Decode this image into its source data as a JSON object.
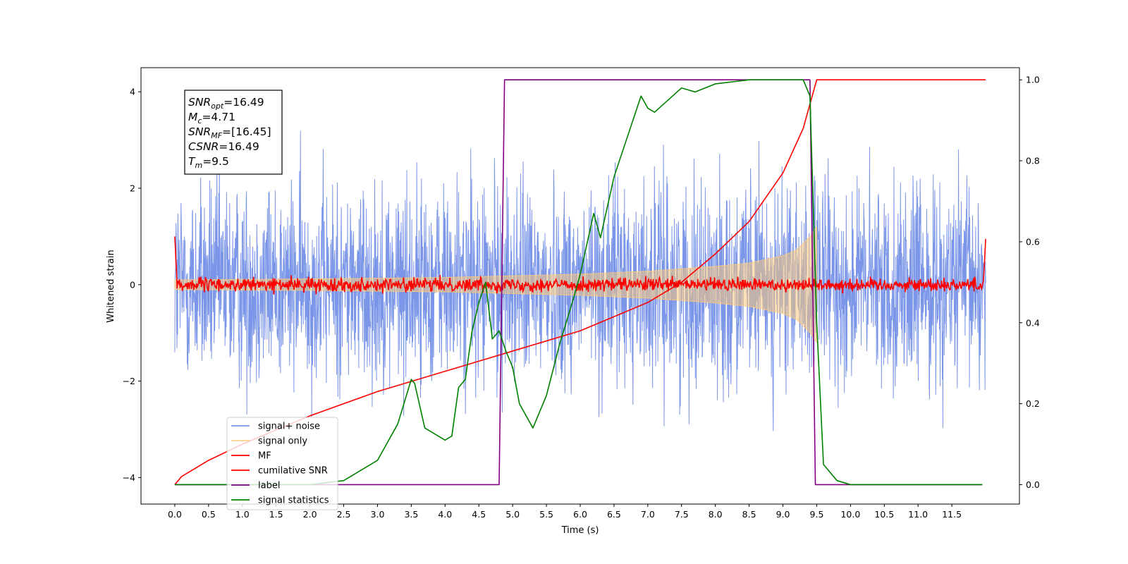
{
  "chart_data": {
    "type": "line",
    "xlabel": "Time (s)",
    "ylabel": "Whitened strain",
    "xlim": [
      -0.5,
      12.5
    ],
    "ylim": [
      -4.55,
      4.5
    ],
    "ylim_right": [
      -0.048,
      1.03
    ],
    "x_ticks": [
      0.0,
      0.5,
      1.0,
      1.5,
      2.0,
      2.5,
      3.0,
      3.5,
      4.0,
      4.5,
      5.0,
      5.5,
      6.0,
      6.5,
      7.0,
      7.5,
      8.0,
      8.5,
      9.0,
      9.5,
      10.0,
      10.5,
      11.0,
      11.5
    ],
    "x_tick_labels": [
      "0.0",
      "0.5",
      "1.0",
      "1.5",
      "2.0",
      "2.5",
      "3.0",
      "3.5",
      "4.0",
      "4.5",
      "5.0",
      "5.5",
      "6.0",
      "6.5",
      "7.0",
      "7.5",
      "8.0",
      "8.5",
      "9.0",
      "9.5",
      "10.0",
      "10.5",
      "11.0",
      "11.5"
    ],
    "y_ticks": [
      -4,
      -2,
      0,
      2,
      4
    ],
    "y_tick_labels": [
      "−4",
      "−2",
      "0",
      "2",
      "4"
    ],
    "y_ticks_right": [
      0.0,
      0.2,
      0.4,
      0.6,
      0.8,
      1.0
    ],
    "y_tick_labels_right": [
      "0.0",
      "0.2",
      "0.4",
      "0.6",
      "0.8",
      "1.0"
    ],
    "grid": false,
    "legend_placement": "lower-left",
    "colors": {
      "signal_noise": "#7b96e8",
      "signal_only": "#fcc97a",
      "mf": "#ff0000",
      "csnr": "#ff0000",
      "label": "#800080",
      "stats": "#008000"
    },
    "series": [
      {
        "name": "signal+ noise",
        "axis": "left",
        "kind": "noise",
        "x_range": [
          0.0,
          12.0
        ],
        "amplitude_typical": 2.0,
        "max": 4.1,
        "min": -4.15
      },
      {
        "name": "signal only",
        "axis": "left",
        "kind": "chirp",
        "x_range": [
          0.0,
          9.5
        ],
        "envelope": {
          "x": [
            0.0,
            2.0,
            4.0,
            6.0,
            7.0,
            8.0,
            8.5,
            9.0,
            9.2,
            9.4,
            9.5
          ],
          "y": [
            0.1,
            0.12,
            0.15,
            0.22,
            0.28,
            0.38,
            0.45,
            0.6,
            0.72,
            1.0,
            1.2
          ]
        }
      },
      {
        "name": "MF",
        "axis": "left",
        "kind": "noisy-flat",
        "x_range": [
          0.0,
          12.0
        ],
        "level": 0.0,
        "spread": 0.07,
        "start_value": 1.0,
        "end_value": 0.95
      },
      {
        "name": "cumilative SNR",
        "axis": "right",
        "x": [
          0.0,
          0.1,
          0.5,
          1.0,
          2.0,
          3.0,
          4.0,
          5.0,
          6.0,
          7.0,
          7.5,
          8.0,
          8.5,
          9.0,
          9.3,
          9.5,
          12.0
        ],
        "y": [
          0.0,
          0.02,
          0.06,
          0.1,
          0.17,
          0.23,
          0.28,
          0.33,
          0.38,
          0.45,
          0.5,
          0.57,
          0.65,
          0.77,
          0.88,
          1.0,
          1.0
        ]
      },
      {
        "name": "label",
        "axis": "right",
        "x": [
          0.0,
          4.8,
          4.88,
          9.4,
          9.48,
          11.95
        ],
        "y": [
          0.0,
          0.0,
          1.0,
          1.0,
          0.0,
          0.0
        ]
      },
      {
        "name": "signal statistics",
        "axis": "right",
        "x": [
          0.0,
          2.0,
          2.5,
          2.8,
          3.0,
          3.1,
          3.3,
          3.5,
          3.55,
          3.7,
          3.9,
          4.0,
          4.1,
          4.2,
          4.3,
          4.4,
          4.5,
          4.6,
          4.7,
          4.8,
          4.9,
          5.0,
          5.1,
          5.3,
          5.5,
          5.7,
          5.9,
          6.0,
          6.2,
          6.3,
          6.5,
          6.7,
          6.9,
          7.0,
          7.1,
          7.3,
          7.5,
          7.7,
          8.0,
          8.5,
          9.0,
          9.3,
          9.4,
          9.5,
          9.6,
          9.8,
          10.0,
          11.0,
          11.95
        ],
        "y": [
          0.0,
          0.0,
          0.01,
          0.04,
          0.06,
          0.09,
          0.15,
          0.26,
          0.25,
          0.14,
          0.12,
          0.11,
          0.12,
          0.24,
          0.26,
          0.38,
          0.45,
          0.5,
          0.36,
          0.38,
          0.33,
          0.29,
          0.2,
          0.14,
          0.22,
          0.35,
          0.46,
          0.52,
          0.67,
          0.61,
          0.76,
          0.86,
          0.96,
          0.93,
          0.92,
          0.95,
          0.98,
          0.97,
          0.99,
          1.0,
          1.0,
          1.0,
          0.96,
          0.4,
          0.05,
          0.01,
          0.0,
          0.0,
          0.0
        ]
      }
    ],
    "annotation": {
      "lines": [
        {
          "base": "SNR",
          "sub": "opt",
          "value": "=16.49"
        },
        {
          "base": "M",
          "sub": "c",
          "value": "=4.71"
        },
        {
          "base": "SNR",
          "sub": "MF",
          "value": "=[16.45]"
        },
        {
          "base": "CSNR",
          "sub": "",
          "value": "=16.49"
        },
        {
          "base": "T",
          "sub": "m",
          "value": "=9.5"
        }
      ]
    }
  }
}
